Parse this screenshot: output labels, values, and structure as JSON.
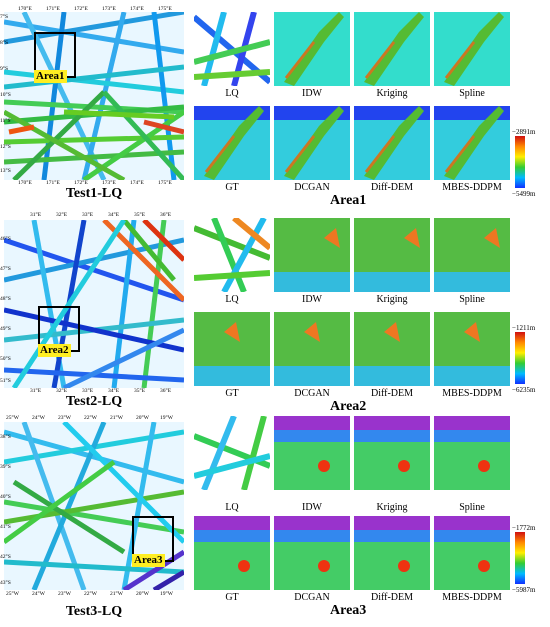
{
  "panels": [
    {
      "id": "row1",
      "big_caption": "Test1-LQ",
      "area_label": "Area1",
      "area_caption": "Area1",
      "x_ticks": [
        "170°E",
        "171°E",
        "172°E",
        "173°E",
        "174°E",
        "175°E"
      ],
      "y_ticks": [
        "7°S",
        "8°S",
        "9°S",
        "10°S",
        "11°S",
        "12°S",
        "13°S"
      ],
      "method_labels_top": [
        "LQ",
        "IDW",
        "Kriging",
        "Spline"
      ],
      "method_labels_bottom": [
        "GT",
        "DCGAN",
        "Diff-DEM",
        "MBES-DDPM"
      ],
      "cbar_max": "−2891m",
      "cbar_min": "−5499m"
    },
    {
      "id": "row2",
      "big_caption": "Test2-LQ",
      "area_label": "Area2",
      "area_caption": "Area2",
      "x_ticks": [
        "31°E",
        "32°E",
        "33°E",
        "34°E",
        "35°E",
        "36°E"
      ],
      "y_ticks": [
        "46°S",
        "47°S",
        "48°S",
        "49°S",
        "50°S",
        "51°S"
      ],
      "method_labels_top": [
        "LQ",
        "IDW",
        "Kriging",
        "Spline"
      ],
      "method_labels_bottom": [
        "GT",
        "DCGAN",
        "Diff-DEM",
        "MBES-DDPM"
      ],
      "cbar_max": "−1211m",
      "cbar_min": "−6235m"
    },
    {
      "id": "row3",
      "big_caption": "Test3-LQ",
      "area_label": "Area3",
      "area_caption": "Area3",
      "x_ticks": [
        "25°W",
        "24°W",
        "23°W",
        "22°W",
        "21°W",
        "20°W",
        "19°W"
      ],
      "y_ticks": [
        "38°S",
        "39°S",
        "40°S",
        "41°S",
        "42°S",
        "43°S"
      ],
      "method_labels_top": [
        "LQ",
        "IDW",
        "Kriging",
        "Spline"
      ],
      "method_labels_bottom": [
        "GT",
        "DCGAN",
        "Diff-DEM",
        "MBES-DDPM"
      ],
      "cbar_max": "−1772m",
      "cbar_min": "−5987m"
    }
  ]
}
